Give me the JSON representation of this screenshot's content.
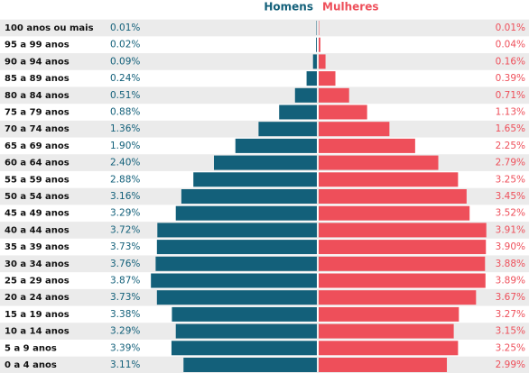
{
  "chart_data": {
    "type": "bar",
    "categories": [
      "100 anos ou mais",
      "95 a 99 anos",
      "90 a 94 anos",
      "85 a 89 anos",
      "80 a 84 anos",
      "75 a 79 anos",
      "70 a 74 anos",
      "65 a 69 anos",
      "60 a 64 anos",
      "55 a 59 anos",
      "50 a 54 anos",
      "45 a 49 anos",
      "40 a 44 anos",
      "35 a 39 anos",
      "30 a 34 anos",
      "25 a 29 anos",
      "20 a 24 anos",
      "15 a 19 anos",
      "10 a 14 anos",
      "5 a 9 anos",
      "0 a 4 anos"
    ],
    "series": [
      {
        "name": "Homens",
        "color": "#13607a",
        "values": [
          0.01,
          0.02,
          0.09,
          0.24,
          0.51,
          0.88,
          1.36,
          1.9,
          2.4,
          2.88,
          3.16,
          3.29,
          3.72,
          3.73,
          3.76,
          3.87,
          3.73,
          3.38,
          3.29,
          3.39,
          3.11
        ],
        "value_labels": [
          "0.01%",
          "0.02%",
          "0.09%",
          "0.24%",
          "0.51%",
          "0.88%",
          "1.36%",
          "1.90%",
          "2.40%",
          "2.88%",
          "3.16%",
          "3.29%",
          "3.72%",
          "3.73%",
          "3.76%",
          "3.87%",
          "3.73%",
          "3.38%",
          "3.29%",
          "3.39%",
          "3.11%"
        ]
      },
      {
        "name": "Mulheres",
        "color": "#ee4f5a",
        "values": [
          0.01,
          0.04,
          0.16,
          0.39,
          0.71,
          1.13,
          1.65,
          2.25,
          2.79,
          3.25,
          3.45,
          3.52,
          3.91,
          3.9,
          3.88,
          3.89,
          3.67,
          3.27,
          3.15,
          3.25,
          2.99
        ],
        "value_labels": [
          "0.01%",
          "0.04%",
          "0.16%",
          "0.39%",
          "0.71%",
          "1.13%",
          "1.65%",
          "2.25%",
          "2.79%",
          "3.25%",
          "3.45%",
          "3.52%",
          "3.91%",
          "3.90%",
          "3.88%",
          "3.89%",
          "3.67%",
          "3.27%",
          "3.15%",
          "3.25%",
          "2.99%"
        ]
      }
    ]
  }
}
